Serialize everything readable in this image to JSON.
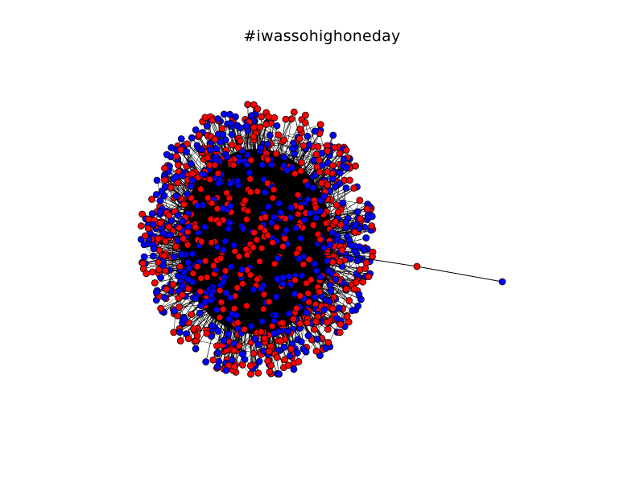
{
  "title": "#iwassohighoneday",
  "colors": {
    "background": "#ffffff",
    "edge": "#000000",
    "node_blue": "#0000ff",
    "node_red": "#ff0000",
    "node_outline": "#000000"
  },
  "graph": {
    "layout": "force-directed",
    "node_colors": [
      "blue",
      "red"
    ],
    "components": "one dense cluster with a short chain of two outlying nodes"
  }
}
